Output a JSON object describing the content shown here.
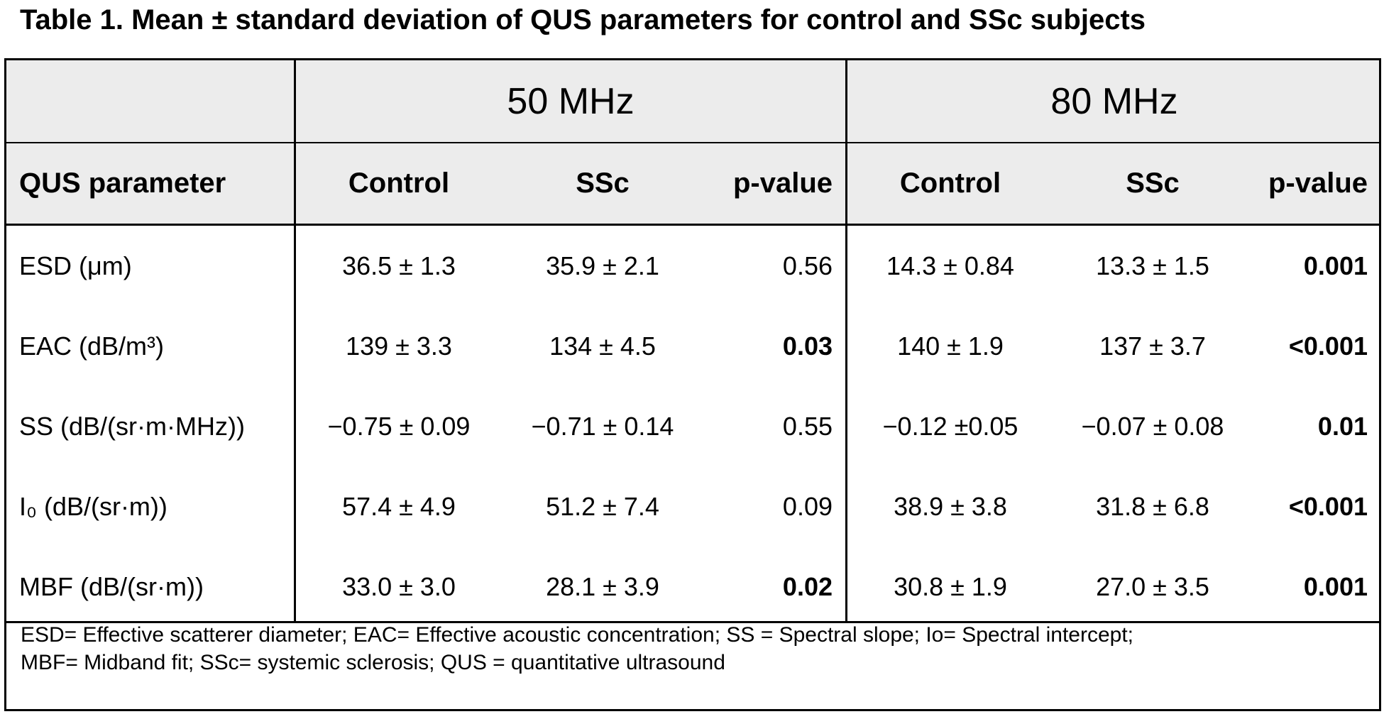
{
  "title": "Table 1. Mean ± standard deviation of QUS parameters for control and SSc subjects",
  "table": {
    "frequency_groups": [
      "50 MHz",
      "80 MHz"
    ],
    "column_headers": [
      "QUS parameter",
      "Control",
      "SSc",
      "p-value",
      "Control",
      "SSc",
      "p-value"
    ],
    "rows": [
      {
        "parameter": "ESD (μm)",
        "c50": "36.5 ± 1.3",
        "s50": "35.9 ± 2.1",
        "p50": "0.56",
        "p50_bold": false,
        "c80": "14.3 ± 0.84",
        "s80": "13.3 ± 1.5",
        "p80": "0.001",
        "p80_bold": true
      },
      {
        "parameter": "EAC (dB/m³)",
        "c50": "139 ± 3.3",
        "s50": "134 ± 4.5",
        "p50": "0.03",
        "p50_bold": true,
        "c80": "140 ± 1.9",
        "s80": "137 ± 3.7",
        "p80": "<0.001",
        "p80_bold": true
      },
      {
        "parameter": "SS (dB/(sr·m·MHz))",
        "c50": "−0.75 ± 0.09",
        "s50": "−0.71 ± 0.14",
        "p50": "0.55",
        "p50_bold": false,
        "c80": "−0.12 ±0.05",
        "s80": "−0.07 ± 0.08",
        "p80": "0.01",
        "p80_bold": true
      },
      {
        "parameter": "I₀ (dB/(sr·m))",
        "c50": "57.4 ± 4.9",
        "s50": "51.2 ± 7.4",
        "p50": "0.09",
        "p50_bold": false,
        "c80": "38.9 ± 3.8",
        "s80": "31.8 ± 6.8",
        "p80": "<0.001",
        "p80_bold": true
      },
      {
        "parameter": "MBF (dB/(sr·m))",
        "c50": "33.0 ± 3.0",
        "s50": "28.1 ± 3.9",
        "p50": "0.02",
        "p50_bold": true,
        "c80": "30.8 ± 1.9",
        "s80": "27.0 ± 3.5",
        "p80": "0.001",
        "p80_bold": true
      }
    ],
    "footnote_lines": [
      "ESD= Effective scatterer diameter; EAC= Effective acoustic concentration; SS = Spectral slope; Io= Spectral intercept;",
      "MBF= Midband fit; SSc= systemic sclerosis; QUS = quantitative ultrasound"
    ]
  }
}
